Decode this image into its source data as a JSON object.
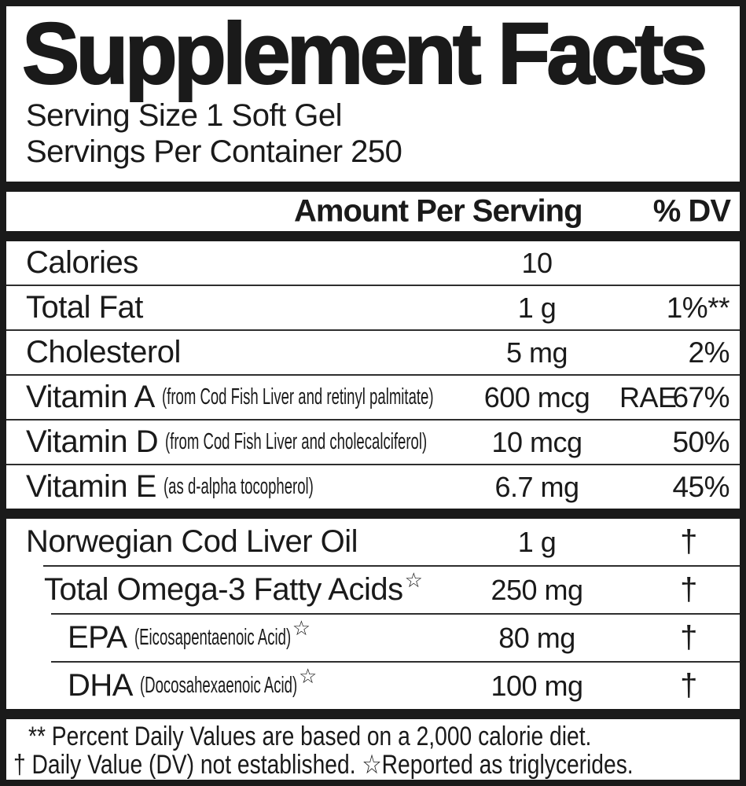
{
  "header": {
    "title": "Supplement Facts",
    "serving_size": "Serving Size 1 Soft Gel",
    "servings_per_container": "Servings Per Container 250"
  },
  "columns": {
    "amount_header": "Amount Per Serving",
    "dv_header": "% DV"
  },
  "rows": [
    {
      "group": 1,
      "indent": 0,
      "name": "Calories",
      "paren": "",
      "sup": "",
      "amount": "10",
      "amount_suffix": "",
      "dv": "",
      "divider_indent": 0
    },
    {
      "group": 1,
      "indent": 0,
      "name": "Total Fat",
      "paren": "",
      "sup": "",
      "amount": "1 g",
      "amount_suffix": "",
      "dv": "1%**",
      "divider_indent": 0
    },
    {
      "group": 1,
      "indent": 0,
      "name": "Cholesterol",
      "paren": "",
      "sup": "",
      "amount": "5 mg",
      "amount_suffix": "",
      "dv": "2%",
      "divider_indent": 0
    },
    {
      "group": 1,
      "indent": 0,
      "name": "Vitamin A",
      "paren": "(from Cod Fish Liver and retinyl palmitate)",
      "sup": "",
      "amount": "600 mcg",
      "amount_suffix": "RAE",
      "dv": "67%",
      "divider_indent": 0
    },
    {
      "group": 1,
      "indent": 0,
      "name": "Vitamin D",
      "paren": "(from Cod Fish Liver and cholecalciferol)",
      "sup": "",
      "amount": "10 mcg",
      "amount_suffix": "",
      "dv": "50%",
      "divider_indent": 0
    },
    {
      "group": 1,
      "indent": 0,
      "name": "Vitamin E",
      "paren": "(as d-alpha tocopherol)",
      "sup": "",
      "amount": "6.7 mg",
      "amount_suffix": "",
      "dv": "45%",
      "divider_indent": null
    },
    {
      "group": 2,
      "indent": 0,
      "name": "Norwegian Cod Liver Oil",
      "paren": "",
      "sup": "",
      "amount": "1 g",
      "amount_suffix": "",
      "dv": "†",
      "divider_indent": 47
    },
    {
      "group": 2,
      "indent": 1,
      "name": "Total Omega-3 Fatty Acids",
      "paren": "",
      "sup": "☆",
      "amount": "250 mg",
      "amount_suffix": "",
      "dv": "†",
      "divider_indent": 57
    },
    {
      "group": 2,
      "indent": 2,
      "name": "EPA",
      "paren": "(Eicosapentaenoic Acid)",
      "sup": "☆",
      "amount": "80 mg",
      "amount_suffix": "",
      "dv": "†",
      "divider_indent": 57
    },
    {
      "group": 2,
      "indent": 2,
      "name": "DHA",
      "paren": "(Docosahexaenoic Acid)",
      "sup": "☆",
      "amount": "100 mg",
      "amount_suffix": "",
      "dv": "†",
      "divider_indent": null
    }
  ],
  "footnotes": {
    "line1": "** Percent Daily Values are based on a 2,000 calorie diet.",
    "line2": "† Daily Value (DV) not established.  ☆Reported as triglycerides."
  },
  "colors": {
    "ink": "#1a1a1a",
    "background": "#ffffff"
  }
}
